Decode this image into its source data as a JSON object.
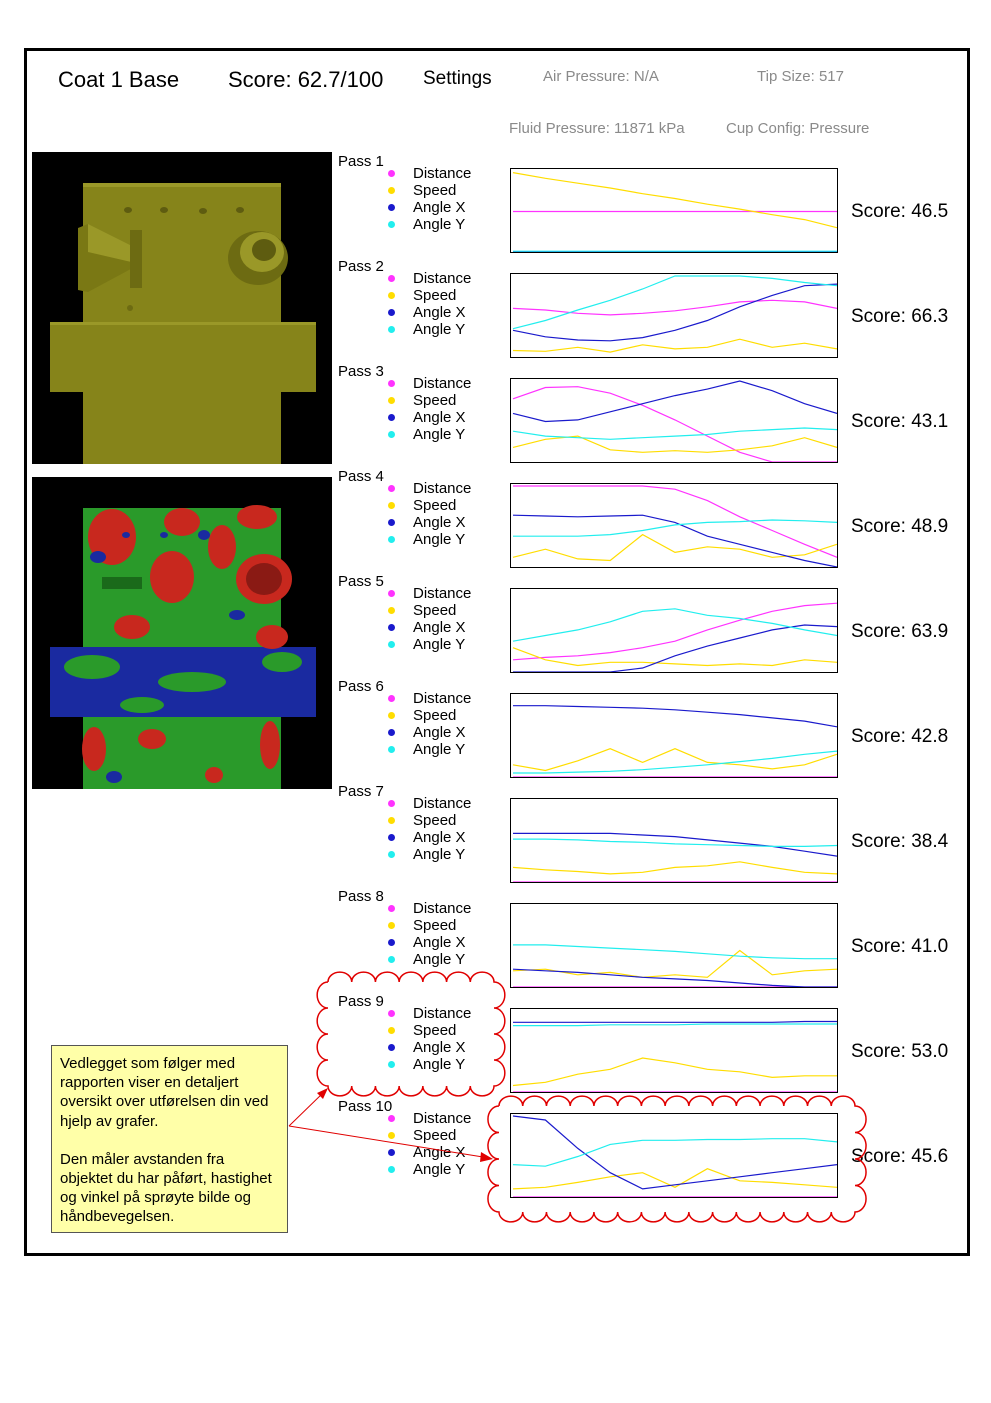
{
  "header": {
    "coat_title": "Coat 1 Base",
    "total_score": "Score: 62.7/100",
    "settings_label": "Settings",
    "air_pressure": "Air Pressure: N/A",
    "tip_size": "Tip Size: 517",
    "fluid_pressure": "Fluid Pressure: 11871 kPa",
    "cup_config": "Cup Config: Pressure"
  },
  "colors": {
    "distance": "#ff33ff",
    "speed": "#ffdd00",
    "angle_x": "#1a1acc",
    "angle_y": "#22eeee",
    "annotation": "#e00000",
    "note_background": "#ffffa8",
    "render_olive": "#86841a",
    "coverage_good": "#2a9a2a",
    "coverage_over": "#c8281e",
    "coverage_under": "#1a2aa0"
  },
  "legend": [
    "Distance",
    "Speed",
    "Angle X",
    "Angle Y"
  ],
  "passes": [
    {
      "label": "Pass 1",
      "score": "Score: 46.5"
    },
    {
      "label": "Pass 2",
      "score": "Score: 66.3"
    },
    {
      "label": "Pass 3",
      "score": "Score: 43.1"
    },
    {
      "label": "Pass 4",
      "score": "Score: 48.9"
    },
    {
      "label": "Pass 5",
      "score": "Score: 63.9"
    },
    {
      "label": "Pass 6",
      "score": "Score: 42.8"
    },
    {
      "label": "Pass 7",
      "score": "Score: 38.4"
    },
    {
      "label": "Pass 8",
      "score": "Score: 41.0"
    },
    {
      "label": "Pass 9",
      "score": "Score: 53.0"
    },
    {
      "label": "Pass 10",
      "score": "Score: 45.6"
    }
  ],
  "chart_data": [
    {
      "type": "line",
      "title": "Pass 1",
      "ylim": [
        0,
        1
      ],
      "x": [
        0,
        0.1,
        0.2,
        0.3,
        0.4,
        0.5,
        0.6,
        0.7,
        0.8,
        0.9,
        1.0
      ],
      "series": [
        {
          "name": "Distance",
          "values": [
            0.5,
            0.5,
            0.5,
            0.5,
            0.5,
            0.5,
            0.5,
            0.5,
            0.5,
            0.5,
            0.5
          ]
        },
        {
          "name": "Speed",
          "values": [
            0.98,
            0.91,
            0.85,
            0.79,
            0.72,
            0.66,
            0.59,
            0.53,
            0.46,
            0.4,
            0.3
          ]
        },
        {
          "name": "Angle X",
          "values": [
            0.0,
            0.0,
            0.0,
            0.0,
            0.0,
            0.0,
            0.0,
            0.0,
            0.0,
            0.0,
            0.0
          ]
        },
        {
          "name": "Angle Y",
          "values": [
            0.01,
            0.01,
            0.01,
            0.01,
            0.01,
            0.01,
            0.01,
            0.01,
            0.01,
            0.01,
            0.01
          ]
        }
      ]
    },
    {
      "type": "line",
      "title": "Pass 2",
      "ylim": [
        0,
        1
      ],
      "x": [
        0,
        0.1,
        0.2,
        0.3,
        0.4,
        0.5,
        0.6,
        0.7,
        0.8,
        0.9,
        1.0
      ],
      "series": [
        {
          "name": "Distance",
          "values": [
            0.6,
            0.58,
            0.54,
            0.52,
            0.54,
            0.57,
            0.62,
            0.68,
            0.7,
            0.68,
            0.6
          ]
        },
        {
          "name": "Speed",
          "values": [
            0.08,
            0.07,
            0.12,
            0.06,
            0.15,
            0.1,
            0.12,
            0.22,
            0.12,
            0.17,
            0.1
          ]
        },
        {
          "name": "Angle X",
          "values": [
            0.33,
            0.25,
            0.21,
            0.2,
            0.24,
            0.33,
            0.45,
            0.62,
            0.76,
            0.88,
            0.9
          ]
        },
        {
          "name": "Angle Y",
          "values": [
            0.35,
            0.45,
            0.58,
            0.7,
            0.84,
            1.0,
            1.0,
            1.0,
            0.97,
            0.92,
            0.88
          ]
        }
      ]
    },
    {
      "type": "line",
      "title": "Pass 3",
      "ylim": [
        0,
        1
      ],
      "x": [
        0,
        0.1,
        0.2,
        0.3,
        0.4,
        0.5,
        0.6,
        0.7,
        0.8,
        0.9,
        1.0
      ],
      "series": [
        {
          "name": "Distance",
          "values": [
            0.78,
            0.92,
            0.93,
            0.85,
            0.7,
            0.52,
            0.32,
            0.12,
            0.0,
            0.0,
            0.0
          ]
        },
        {
          "name": "Speed",
          "values": [
            0.18,
            0.28,
            0.32,
            0.15,
            0.12,
            0.14,
            0.12,
            0.15,
            0.2,
            0.3,
            0.18
          ]
        },
        {
          "name": "Angle X",
          "values": [
            0.6,
            0.5,
            0.52,
            0.62,
            0.72,
            0.82,
            0.9,
            1.0,
            0.88,
            0.72,
            0.6
          ]
        },
        {
          "name": "Angle Y",
          "values": [
            0.38,
            0.32,
            0.3,
            0.28,
            0.3,
            0.32,
            0.34,
            0.38,
            0.4,
            0.42,
            0.4
          ]
        }
      ]
    },
    {
      "type": "line",
      "title": "Pass 4",
      "ylim": [
        0,
        1
      ],
      "x": [
        0,
        0.1,
        0.2,
        0.3,
        0.4,
        0.5,
        0.6,
        0.7,
        0.8,
        0.9,
        1.0
      ],
      "series": [
        {
          "name": "Distance",
          "values": [
            1.0,
            1.0,
            1.0,
            1.0,
            1.0,
            0.96,
            0.82,
            0.62,
            0.45,
            0.28,
            0.12
          ]
        },
        {
          "name": "Speed",
          "values": [
            0.12,
            0.22,
            0.1,
            0.08,
            0.4,
            0.18,
            0.25,
            0.22,
            0.12,
            0.15,
            0.28
          ]
        },
        {
          "name": "Angle X",
          "values": [
            0.64,
            0.63,
            0.62,
            0.63,
            0.64,
            0.55,
            0.38,
            0.28,
            0.18,
            0.08,
            0.0
          ]
        },
        {
          "name": "Angle Y",
          "values": [
            0.38,
            0.38,
            0.38,
            0.4,
            0.45,
            0.52,
            0.55,
            0.56,
            0.58,
            0.57,
            0.55
          ]
        }
      ]
    },
    {
      "type": "line",
      "title": "Pass 5",
      "ylim": [
        0,
        1
      ],
      "x": [
        0,
        0.1,
        0.2,
        0.3,
        0.4,
        0.5,
        0.6,
        0.7,
        0.8,
        0.9,
        1.0
      ],
      "series": [
        {
          "name": "Distance",
          "values": [
            0.15,
            0.18,
            0.2,
            0.24,
            0.3,
            0.38,
            0.52,
            0.64,
            0.75,
            0.82,
            0.85
          ]
        },
        {
          "name": "Speed",
          "values": [
            0.3,
            0.15,
            0.08,
            0.12,
            0.12,
            0.1,
            0.08,
            0.1,
            0.08,
            0.15,
            0.12
          ]
        },
        {
          "name": "Angle X",
          "values": [
            0.0,
            0.0,
            0.0,
            0.0,
            0.05,
            0.2,
            0.32,
            0.42,
            0.52,
            0.58,
            0.56
          ]
        },
        {
          "name": "Angle Y",
          "values": [
            0.38,
            0.45,
            0.52,
            0.62,
            0.75,
            0.78,
            0.7,
            0.66,
            0.6,
            0.52,
            0.45
          ]
        }
      ]
    },
    {
      "type": "line",
      "title": "Pass 6",
      "ylim": [
        0,
        1
      ],
      "x": [
        0,
        0.1,
        0.2,
        0.3,
        0.4,
        0.5,
        0.6,
        0.7,
        0.8,
        0.9,
        1.0
      ],
      "series": [
        {
          "name": "Distance",
          "values": [
            0.0,
            0.0,
            0.0,
            0.0,
            0.0,
            0.0,
            0.0,
            0.0,
            0.0,
            0.0,
            0.0
          ]
        },
        {
          "name": "Speed",
          "values": [
            0.15,
            0.08,
            0.2,
            0.35,
            0.18,
            0.35,
            0.18,
            0.15,
            0.1,
            0.15,
            0.28
          ]
        },
        {
          "name": "Angle X",
          "values": [
            0.88,
            0.88,
            0.87,
            0.86,
            0.85,
            0.83,
            0.8,
            0.77,
            0.73,
            0.69,
            0.62
          ]
        },
        {
          "name": "Angle Y",
          "values": [
            0.05,
            0.05,
            0.06,
            0.07,
            0.09,
            0.12,
            0.15,
            0.19,
            0.23,
            0.28,
            0.32
          ]
        }
      ]
    },
    {
      "type": "line",
      "title": "Pass 7",
      "ylim": [
        0,
        1
      ],
      "x": [
        0,
        0.1,
        0.2,
        0.3,
        0.4,
        0.5,
        0.6,
        0.7,
        0.8,
        0.9,
        1.0
      ],
      "series": [
        {
          "name": "Distance",
          "values": [
            0.0,
            0.0,
            0.0,
            0.0,
            0.0,
            0.0,
            0.0,
            0.0,
            0.0,
            0.0,
            0.0
          ]
        },
        {
          "name": "Speed",
          "values": [
            0.18,
            0.15,
            0.13,
            0.1,
            0.12,
            0.18,
            0.2,
            0.25,
            0.18,
            0.12,
            0.1
          ]
        },
        {
          "name": "Angle X",
          "values": [
            0.6,
            0.6,
            0.6,
            0.6,
            0.58,
            0.56,
            0.52,
            0.48,
            0.44,
            0.38,
            0.32
          ]
        },
        {
          "name": "Angle Y",
          "values": [
            0.53,
            0.53,
            0.52,
            0.5,
            0.49,
            0.47,
            0.46,
            0.45,
            0.44,
            0.44,
            0.45
          ]
        }
      ]
    },
    {
      "type": "line",
      "title": "Pass 8",
      "ylim": [
        0,
        1
      ],
      "x": [
        0,
        0.1,
        0.2,
        0.3,
        0.4,
        0.5,
        0.6,
        0.7,
        0.8,
        0.9,
        1.0
      ],
      "series": [
        {
          "name": "Distance",
          "values": [
            0.0,
            0.0,
            0.0,
            0.0,
            0.0,
            0.0,
            0.0,
            0.0,
            0.0,
            0.0,
            0.0
          ]
        },
        {
          "name": "Speed",
          "values": [
            0.2,
            0.22,
            0.15,
            0.18,
            0.12,
            0.15,
            0.12,
            0.45,
            0.15,
            0.2,
            0.22
          ]
        },
        {
          "name": "Angle X",
          "values": [
            0.22,
            0.2,
            0.18,
            0.15,
            0.12,
            0.1,
            0.08,
            0.05,
            0.02,
            0.0,
            0.0
          ]
        },
        {
          "name": "Angle Y",
          "values": [
            0.52,
            0.52,
            0.5,
            0.48,
            0.46,
            0.44,
            0.41,
            0.38,
            0.36,
            0.35,
            0.35
          ]
        }
      ]
    },
    {
      "type": "line",
      "title": "Pass 9",
      "ylim": [
        0,
        1
      ],
      "x": [
        0,
        0.1,
        0.2,
        0.3,
        0.4,
        0.5,
        0.6,
        0.7,
        0.8,
        0.9,
        1.0
      ],
      "series": [
        {
          "name": "Distance",
          "values": [
            0.0,
            0.0,
            0.0,
            0.0,
            0.0,
            0.0,
            0.0,
            0.0,
            0.0,
            0.0,
            0.0
          ]
        },
        {
          "name": "Speed",
          "values": [
            0.08,
            0.12,
            0.22,
            0.28,
            0.42,
            0.36,
            0.28,
            0.25,
            0.18,
            0.2,
            0.2
          ]
        },
        {
          "name": "Angle X",
          "values": [
            0.86,
            0.86,
            0.86,
            0.86,
            0.86,
            0.86,
            0.86,
            0.86,
            0.86,
            0.87,
            0.87
          ]
        },
        {
          "name": "Angle Y",
          "values": [
            0.82,
            0.82,
            0.82,
            0.83,
            0.83,
            0.83,
            0.84,
            0.84,
            0.84,
            0.84,
            0.84
          ]
        }
      ]
    },
    {
      "type": "line",
      "title": "Pass 10",
      "ylim": [
        0,
        1
      ],
      "x": [
        0,
        0.1,
        0.2,
        0.3,
        0.4,
        0.5,
        0.6,
        0.7,
        0.8,
        0.9,
        1.0
      ],
      "series": [
        {
          "name": "Distance",
          "values": [
            0.0,
            0.0,
            0.0,
            0.0,
            0.0,
            0.0,
            0.0,
            0.0,
            0.0,
            0.0,
            0.0
          ]
        },
        {
          "name": "Speed",
          "values": [
            0.1,
            0.12,
            0.18,
            0.25,
            0.3,
            0.12,
            0.35,
            0.2,
            0.18,
            0.15,
            0.12
          ]
        },
        {
          "name": "Angle X",
          "values": [
            1.0,
            0.95,
            0.6,
            0.3,
            0.1,
            0.15,
            0.2,
            0.25,
            0.3,
            0.35,
            0.4
          ]
        },
        {
          "name": "Angle Y",
          "values": [
            0.4,
            0.38,
            0.5,
            0.65,
            0.7,
            0.7,
            0.71,
            0.71,
            0.72,
            0.72,
            0.68
          ]
        }
      ]
    }
  ],
  "note": {
    "paragraph_1": "Vedlegget som følger med rapporten viser en detaljert oversikt over utførelsen din ved hjelp av grafer.",
    "paragraph_2": "Den måler avstanden fra objektet du har påført, hastighet og vinkel på sprøyte bilde og håndbevegelsen."
  }
}
